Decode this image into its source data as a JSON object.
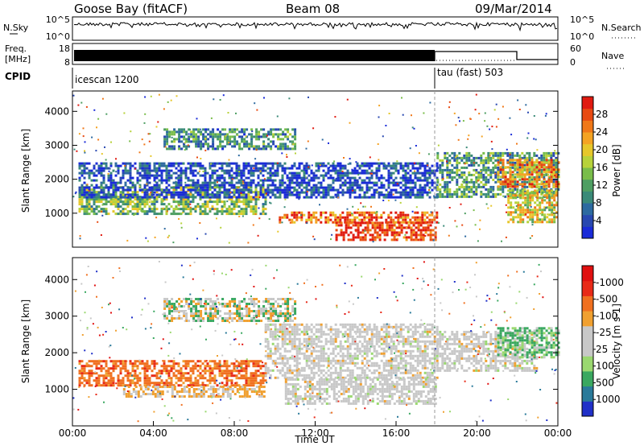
{
  "header": {
    "station": "Goose Bay (fitACF)",
    "beam": "Beam 08",
    "date": "09/Mar/2014"
  },
  "top_panels": {
    "nsky_label": "N.Sky",
    "nsky_ticks": [
      "10^5",
      "10^0"
    ],
    "nsearch_label": "N.Search",
    "nsearch_ticks": [
      "10^5",
      "10^0"
    ],
    "freq_label": "Freq.",
    "freq_unit": "[MHz]",
    "freq_ticks": [
      "18",
      "8"
    ],
    "nave_label": "Nave",
    "nave_ticks": [
      "60",
      "0"
    ],
    "cpid_label": "CPID",
    "cpid_modes": [
      {
        "label": "icescan 1200",
        "start_hour": 0,
        "end_hour": 18
      },
      {
        "label": "tau (fast) 503",
        "start_hour": 18,
        "end_hour": 24
      }
    ]
  },
  "chart_data": [
    {
      "type": "heatmap",
      "name": "power",
      "xlabel": "",
      "ylabel": "Slant Range [km]",
      "ylim": [
        0,
        4600
      ],
      "xlim": [
        0,
        24
      ],
      "y_ticks": [
        1000,
        2000,
        3000,
        4000
      ],
      "colorbar_label": "Power [dB]",
      "colorbar_ticks": [
        "4",
        "8",
        "12",
        "16",
        "20",
        "24",
        "28"
      ],
      "colorbar_colors": [
        "#1a2bd8",
        "#2848b0",
        "#2d6aa0",
        "#3a8a78",
        "#4e9e62",
        "#79bd4a",
        "#b7d23a",
        "#e6c72a",
        "#f4a322",
        "#f07818",
        "#e84a12",
        "#e01a10"
      ],
      "regions": [
        {
          "t0": 0.3,
          "t1": 9.5,
          "r0": 950,
          "r1": 1800,
          "level": 0.45
        },
        {
          "t0": 0.3,
          "t1": 18,
          "r0": 1500,
          "r1": 2500,
          "level": 0.1
        },
        {
          "t0": 10.2,
          "t1": 18,
          "r0": 700,
          "r1": 1050,
          "level": 0.85
        },
        {
          "t0": 13,
          "t1": 18,
          "r0": 250,
          "r1": 750,
          "level": 0.95
        },
        {
          "t0": 4.5,
          "t1": 11,
          "r0": 2900,
          "r1": 3500,
          "level": 0.3
        },
        {
          "t0": 18,
          "t1": 24,
          "r0": 1500,
          "r1": 2800,
          "level": 0.35
        },
        {
          "t0": 21,
          "t1": 24,
          "r0": 1800,
          "r1": 2600,
          "level": 0.75
        },
        {
          "t0": 21.5,
          "t1": 24,
          "r0": 750,
          "r1": 1700,
          "level": 0.6
        }
      ]
    },
    {
      "type": "heatmap",
      "name": "velocity",
      "xlabel": "Time UT",
      "ylabel": "Slant Range [km]",
      "ylim": [
        0,
        4600
      ],
      "xlim": [
        0,
        24
      ],
      "y_ticks": [
        1000,
        2000,
        3000,
        4000
      ],
      "x_ticks": [
        "00:00",
        "04:00",
        "08:00",
        "12:00",
        "16:00",
        "20:00",
        "00:00"
      ],
      "colorbar_label": "Velocity [m s-1]",
      "colorbar_ticks": [
        "1000",
        "500",
        "100",
        "25",
        "-25",
        "-100",
        "-500",
        "-1000"
      ],
      "colorbar_colors": [
        "#2030c8",
        "#2a7a9a",
        "#3aa860",
        "#9ad870",
        "#c8c8c8",
        "#c8c8c8",
        "#f0a030",
        "#f07020",
        "#e82a18",
        "#e01010"
      ],
      "regions": [
        {
          "t0": 0.3,
          "t1": 9.5,
          "r0": 1100,
          "r1": 1800,
          "class": "neg"
        },
        {
          "t0": 2.5,
          "t1": 9.5,
          "r0": 800,
          "r1": 1100,
          "class": "neg2"
        },
        {
          "t0": 9.5,
          "t1": 18,
          "r0": 1300,
          "r1": 2800,
          "class": "zero"
        },
        {
          "t0": 10.5,
          "t1": 18,
          "r0": 600,
          "r1": 1300,
          "class": "zero"
        },
        {
          "t0": 18,
          "t1": 23,
          "r0": 1500,
          "r1": 2600,
          "class": "zero"
        },
        {
          "t0": 21,
          "t1": 24,
          "r0": 1900,
          "r1": 2700,
          "class": "pos"
        },
        {
          "t0": 4.5,
          "t1": 11,
          "r0": 2900,
          "r1": 3500,
          "class": "mix"
        }
      ]
    }
  ]
}
